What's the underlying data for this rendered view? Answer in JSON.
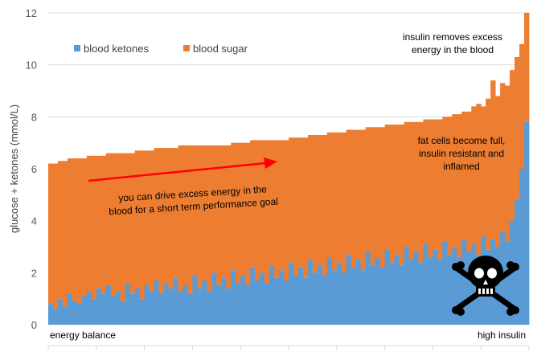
{
  "chart_data": {
    "type": "area",
    "title": "",
    "xlabel": "",
    "ylabel": "glucose + ketones (mmol/L)",
    "ylim": [
      0,
      12
    ],
    "yticks": [
      0,
      2,
      4,
      6,
      8,
      10,
      12
    ],
    "grid": true,
    "legend_position": "top-left",
    "x": {
      "count": 100,
      "start_label": "energy balance",
      "end_label": "high insulin"
    },
    "series": [
      {
        "name": "blood ketones",
        "color": "#5B9BD5",
        "values": [
          0.8,
          0.6,
          1.0,
          0.7,
          1.2,
          0.9,
          0.8,
          1.1,
          1.3,
          1.0,
          1.4,
          1.2,
          1.5,
          1.1,
          1.3,
          0.9,
          1.6,
          1.2,
          1.4,
          1.0,
          1.5,
          1.3,
          1.7,
          1.2,
          1.6,
          1.4,
          1.8,
          1.3,
          1.5,
          1.2,
          1.9,
          1.4,
          1.7,
          1.3,
          2.0,
          1.5,
          1.8,
          1.4,
          2.1,
          1.6,
          1.9,
          1.5,
          2.2,
          1.7,
          2.0,
          1.6,
          2.3,
          1.8,
          2.1,
          1.7,
          2.4,
          1.9,
          2.2,
          1.8,
          2.5,
          2.0,
          2.3,
          1.9,
          2.6,
          2.1,
          2.4,
          2.0,
          2.7,
          2.2,
          2.5,
          2.1,
          2.8,
          2.3,
          2.6,
          2.2,
          2.9,
          2.4,
          2.7,
          2.3,
          3.0,
          2.5,
          2.8,
          2.4,
          3.1,
          2.6,
          2.9,
          2.5,
          3.2,
          2.7,
          3.0,
          2.6,
          3.3,
          2.8,
          3.1,
          2.7,
          3.4,
          2.9,
          3.3,
          3.0,
          3.6,
          3.2,
          4.0,
          4.8,
          6.0,
          7.8
        ]
      },
      {
        "name": "blood sugar",
        "color": "#ED7D31",
        "values": [
          5.4,
          5.6,
          5.3,
          5.6,
          5.2,
          5.5,
          5.6,
          5.3,
          5.2,
          5.5,
          5.1,
          5.3,
          5.1,
          5.5,
          5.3,
          5.7,
          5.0,
          5.4,
          5.3,
          5.7,
          5.2,
          5.4,
          5.1,
          5.6,
          5.2,
          5.4,
          5.0,
          5.6,
          5.4,
          5.7,
          5.0,
          5.5,
          5.2,
          5.6,
          4.9,
          5.4,
          5.1,
          5.5,
          4.9,
          5.4,
          5.1,
          5.5,
          4.9,
          5.4,
          5.1,
          5.5,
          4.8,
          5.3,
          5.0,
          5.4,
          4.8,
          5.3,
          5.0,
          5.4,
          4.8,
          5.3,
          5.0,
          5.4,
          4.8,
          5.3,
          5.0,
          5.4,
          4.8,
          5.3,
          5.0,
          5.4,
          4.8,
          5.3,
          5.0,
          5.4,
          4.8,
          5.3,
          5.0,
          5.4,
          4.8,
          5.3,
          5.0,
          5.4,
          4.8,
          5.3,
          5.0,
          5.4,
          4.8,
          5.3,
          5.1,
          5.5,
          4.9,
          5.4,
          5.3,
          5.8,
          5.0,
          5.8,
          6.1,
          5.8,
          5.7,
          6.0,
          5.8,
          5.5,
          4.8,
          4.2
        ]
      }
    ],
    "annotations": [
      "insulin removes excess energy in the blood",
      "fat cells become full, insulin resistant and inflamed",
      "you can drive excess energy in the blood for a short term performance  goal"
    ]
  },
  "labels": {
    "legend_ketones": "blood ketones",
    "legend_sugar": "blood sugar",
    "ylabel": "glucose + ketones (mmol/L)",
    "annot_insulin_1": "insulin removes excess",
    "annot_insulin_2": "energy in the blood",
    "annot_fat_1": "fat cells become full,",
    "annot_fat_2": "insulin resistant and",
    "annot_fat_3": "inflamed",
    "annot_drive_1": "you can drive excess energy in the",
    "annot_drive_2": "blood for a short term performance  goal",
    "x_start": "energy balance",
    "x_end": "high insulin"
  },
  "icons": {
    "skull": "skull-crossbones-icon",
    "arrow": "red-arrow-icon"
  },
  "colors": {
    "ketones": "#5B9BD5",
    "sugar": "#ED7D31",
    "grid": "#D9D9D9",
    "arrow": "#FF0000"
  }
}
